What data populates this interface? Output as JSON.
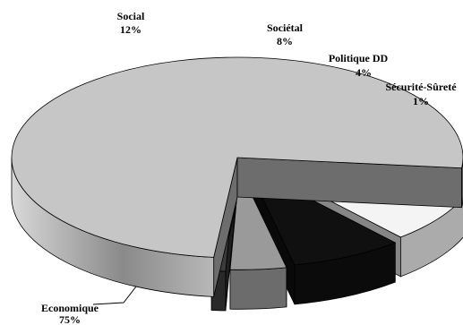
{
  "chart_data": {
    "type": "pie",
    "title": "",
    "three_d": true,
    "exploded": true,
    "grid": false,
    "legend": "none",
    "slices": [
      {
        "label": "Economique",
        "value": 75,
        "value_label": "75%",
        "color": "#c6c6c6"
      },
      {
        "label": "Social",
        "value": 12,
        "value_label": "12%",
        "color": "#f4f4f4"
      },
      {
        "label": "Sociétal",
        "value": 8,
        "value_label": "8%",
        "color": "#101010"
      },
      {
        "label": "Politique DD",
        "value": 4,
        "value_label": "4%",
        "color": "#9a9a9a"
      },
      {
        "label": "Sécurité-Sûreté",
        "value": 1,
        "value_label": "1%",
        "color": "#3a3a3a"
      }
    ]
  }
}
